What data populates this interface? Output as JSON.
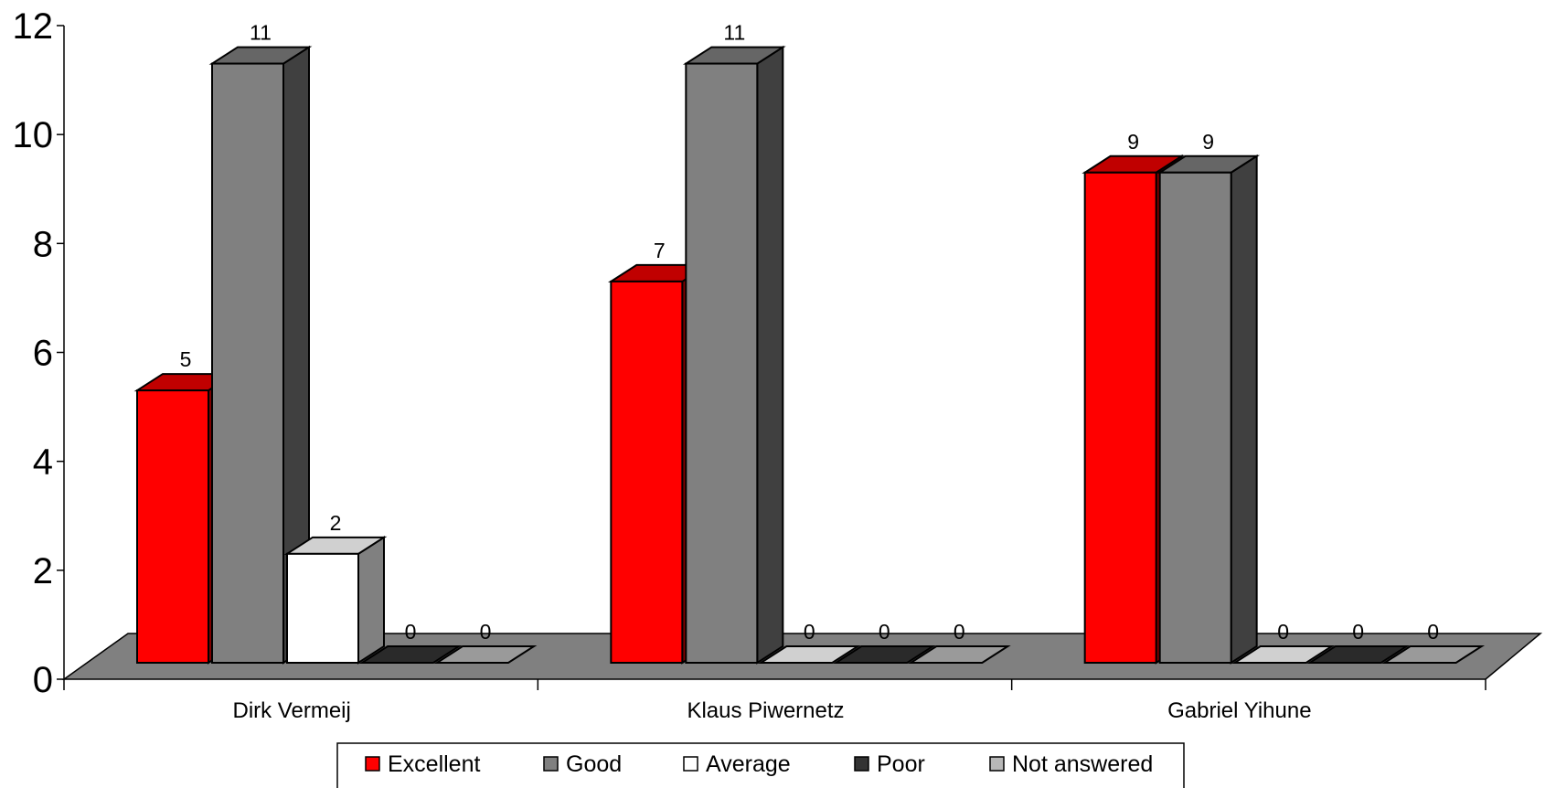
{
  "chart_data": {
    "type": "bar",
    "title": "",
    "xlabel": "",
    "ylabel": "",
    "ylim": [
      0,
      12
    ],
    "yticks": [
      0,
      2,
      4,
      6,
      8,
      10,
      12
    ],
    "categories": [
      "Dirk Vermeij",
      "Klaus Piwernetz",
      "Gabriel Yihune"
    ],
    "series": [
      {
        "name": "Excellent",
        "values": [
          5,
          7,
          9
        ],
        "color": "#ff0000"
      },
      {
        "name": "Good",
        "values": [
          11,
          11,
          9
        ],
        "color": "#808080"
      },
      {
        "name": "Average",
        "values": [
          2,
          0,
          0
        ],
        "color": "#ffffff"
      },
      {
        "name": "Poor",
        "values": [
          0,
          0,
          0
        ],
        "color": "#333333"
      },
      {
        "name": "Not answered",
        "values": [
          0,
          0,
          0
        ],
        "color": "#b8b8b8"
      }
    ],
    "legend_position": "bottom",
    "grid": false,
    "three_d": true,
    "data_labels": true
  }
}
